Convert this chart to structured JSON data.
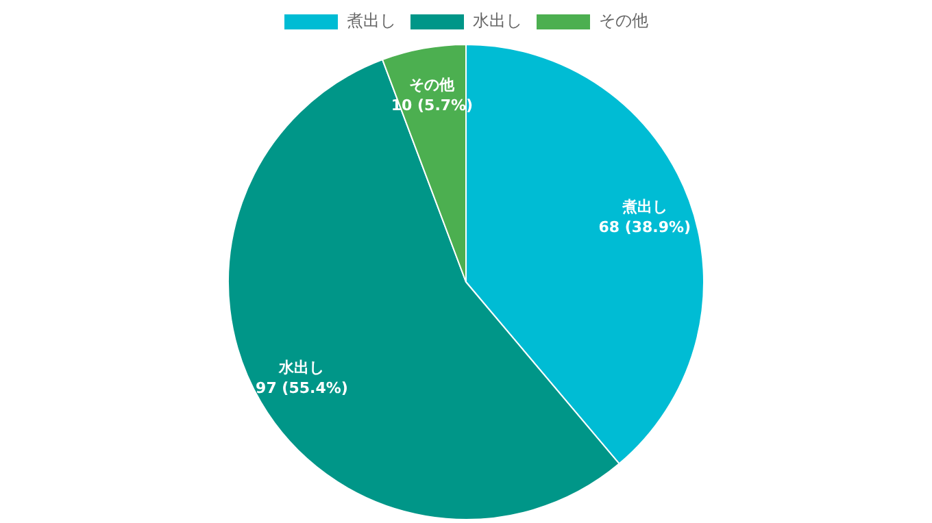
{
  "chart_data": {
    "type": "pie",
    "categories": [
      "煮出し",
      "水出し",
      "その他"
    ],
    "values": [
      68,
      97,
      10
    ],
    "colors": [
      "#00bcd4",
      "#009688",
      "#4caf50"
    ],
    "value_labels": [
      "68 (38.9%)",
      "97 (55.4%)",
      "10 (5.7%)"
    ],
    "legend": "top"
  }
}
